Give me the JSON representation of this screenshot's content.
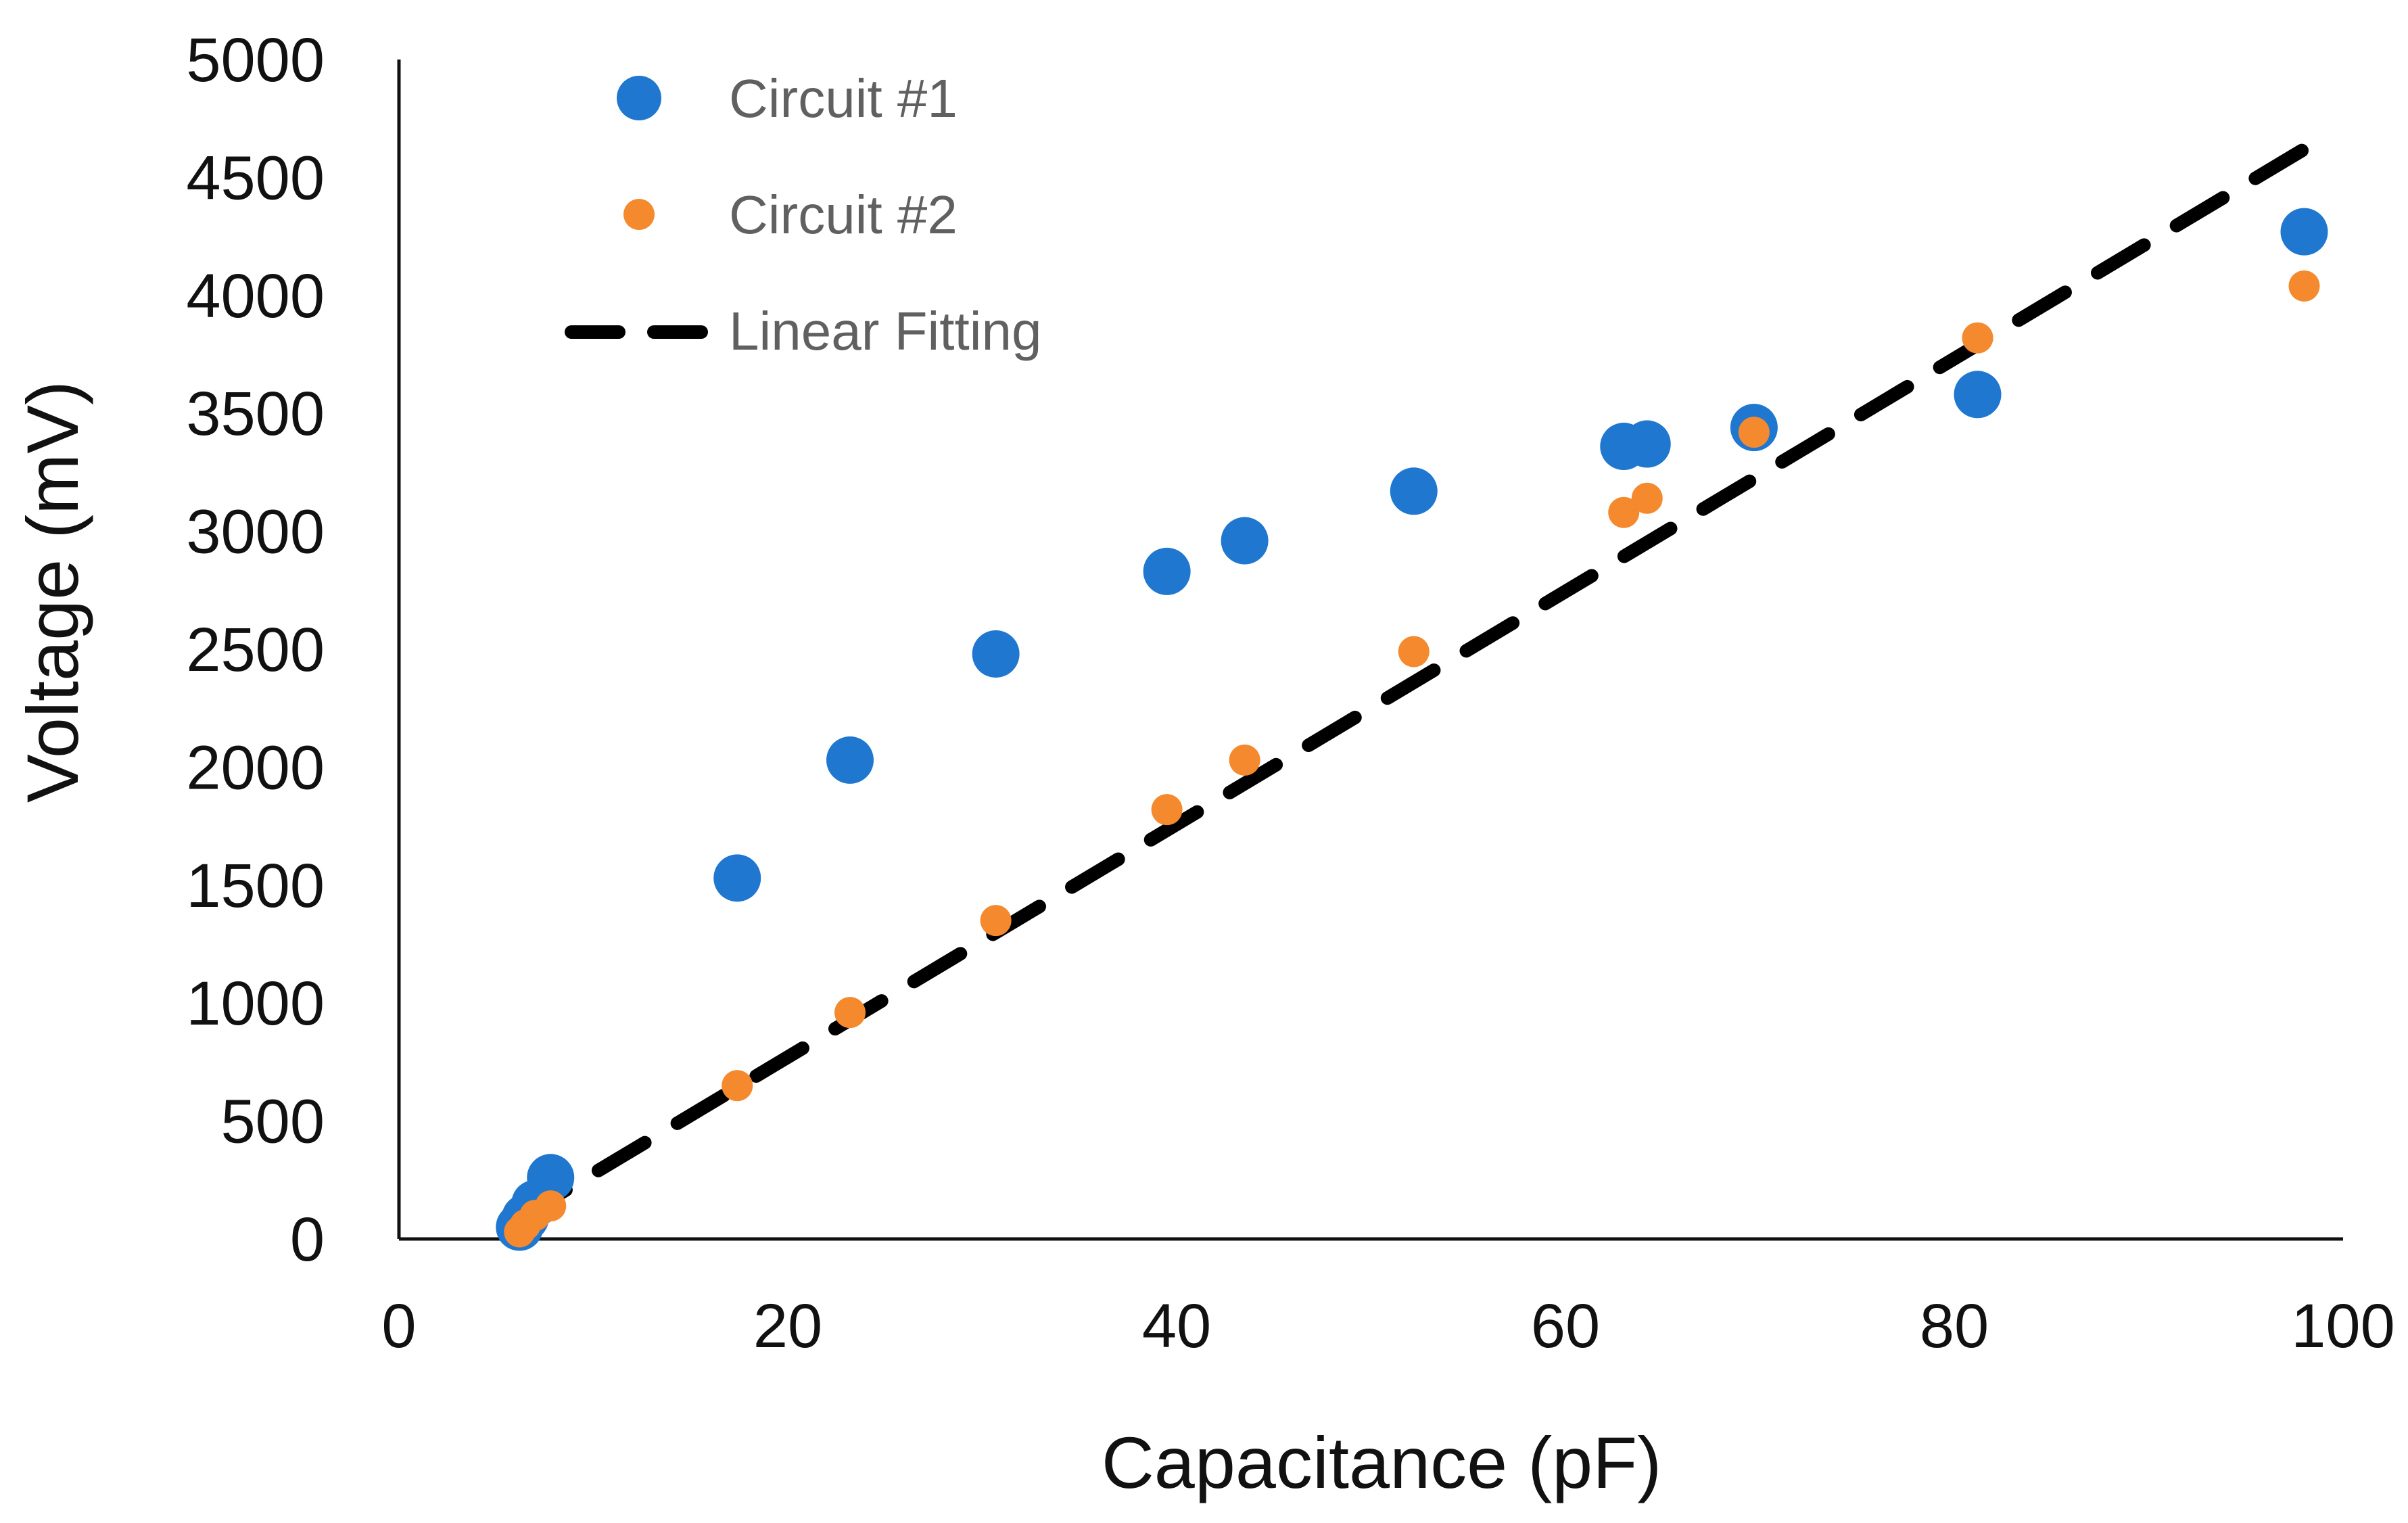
{
  "chart_data": {
    "type": "scatter",
    "title": "",
    "xlabel": "Capacitance (pF)",
    "ylabel": "Voltage (mV)",
    "xlim": [
      0,
      100
    ],
    "ylim": [
      0,
      5000
    ],
    "xticks": [
      0,
      20,
      40,
      60,
      80,
      100
    ],
    "yticks": [
      0,
      500,
      1000,
      1500,
      2000,
      2500,
      3000,
      3500,
      4000,
      4500,
      5000
    ],
    "grid": false,
    "legend_position": "top-left",
    "series": [
      {
        "name": "Circuit #1",
        "kind": "scatter",
        "color": "#1F77D0",
        "marker": "large-circle",
        "points": [
          [
            6.2,
            50
          ],
          [
            6.5,
            90
          ],
          [
            7.0,
            150
          ],
          [
            7.8,
            260
          ],
          [
            17.4,
            1530
          ],
          [
            23.2,
            2030
          ],
          [
            30.7,
            2480
          ],
          [
            39.5,
            2830
          ],
          [
            43.5,
            2960
          ],
          [
            52.2,
            3170
          ],
          [
            63.0,
            3360
          ],
          [
            64.2,
            3370
          ],
          [
            69.7,
            3440
          ],
          [
            81.2,
            3580
          ],
          [
            98.0,
            4270
          ]
        ]
      },
      {
        "name": "Circuit #2",
        "kind": "scatter",
        "color": "#F5892E",
        "marker": "small-circle",
        "points": [
          [
            6.2,
            30
          ],
          [
            6.5,
            60
          ],
          [
            7.0,
            100
          ],
          [
            7.8,
            140
          ],
          [
            17.4,
            650
          ],
          [
            23.2,
            960
          ],
          [
            30.7,
            1350
          ],
          [
            39.5,
            1820
          ],
          [
            43.5,
            2030
          ],
          [
            52.2,
            2490
          ],
          [
            63.0,
            3080
          ],
          [
            64.2,
            3140
          ],
          [
            69.7,
            3420
          ],
          [
            81.2,
            3820
          ],
          [
            98.0,
            4040
          ]
        ]
      },
      {
        "name": "Linear Fitting",
        "kind": "line",
        "color": "#000000",
        "style": "dashed",
        "points": [
          [
            6.2,
            90
          ],
          [
            98.0,
            4620
          ]
        ]
      }
    ]
  }
}
